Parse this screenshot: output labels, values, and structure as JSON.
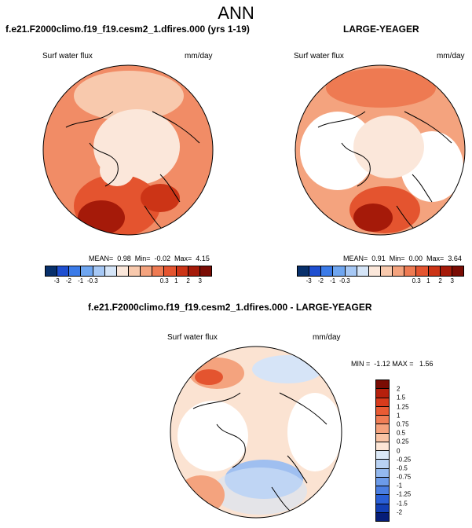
{
  "header": {
    "title": "ANN"
  },
  "panels": {
    "left": {
      "title": "f.e21.F2000climo.f19_f19.cesm2_1.dfires.000 (yrs 1-19)",
      "variable": "Surf water flux",
      "units": "mm/day",
      "stats": "MEAN=  0.98  Min=  -0.02  Max=  4.15"
    },
    "right": {
      "title": "LARGE-YEAGER",
      "variable": "Surf water flux",
      "units": "mm/day",
      "stats": "MEAN=  0.91  Min=  0.00  Max=  3.64"
    },
    "diff": {
      "title": "f.e21.F2000climo.f19_f19.cesm2_1.dfires.000 - LARGE-YEAGER",
      "variable": "Surf water flux",
      "units": "mm/day",
      "stats": "MIN =  -1.12 MAX =   1.56"
    }
  },
  "colorbar_h": {
    "colors": [
      "#08306b",
      "#1f4fd0",
      "#3b7be8",
      "#6fa6f0",
      "#a6c8f5",
      "#d5e5f8",
      "#fbe7da",
      "#f8c9ad",
      "#f4a37e",
      "#ee7a52",
      "#e4542f",
      "#cc3416",
      "#a51a09",
      "#7a0c04"
    ],
    "labels": [
      "-3",
      "-2",
      "-1",
      "-0.3",
      "0.3",
      "1",
      "2",
      "3"
    ],
    "label_boundaries": [
      1,
      2,
      3,
      4,
      10,
      11,
      12,
      13
    ]
  },
  "colorbar_v": {
    "colors": [
      "#7a0c04",
      "#b5200d",
      "#d93b1c",
      "#e95b34",
      "#f07d55",
      "#f5a27d",
      "#f9c4a5",
      "#fde6d6",
      "#dbe8f6",
      "#b9d2f3",
      "#93b8ee",
      "#6c9be9",
      "#4a7ee2",
      "#2a5fd6",
      "#133fb4",
      "#061d78"
    ],
    "labels": [
      "2",
      "1.5",
      "1.25",
      "1",
      "0.75",
      "0.5",
      "0.25",
      "0",
      "-0.25",
      "-0.5",
      "-0.75",
      "-1",
      "-1.25",
      "-1.5",
      "-2"
    ]
  },
  "map_colors": {
    "warm_light": "#fbe3d2",
    "warm_mid": "#f7b894",
    "warm_strong": "#ee7b52",
    "warm_deep": "#d44522",
    "warm_max": "#a01a08",
    "cool_light": "#d6e4f7",
    "cool_mid": "#9fbff0",
    "land": "#ffffff"
  }
}
